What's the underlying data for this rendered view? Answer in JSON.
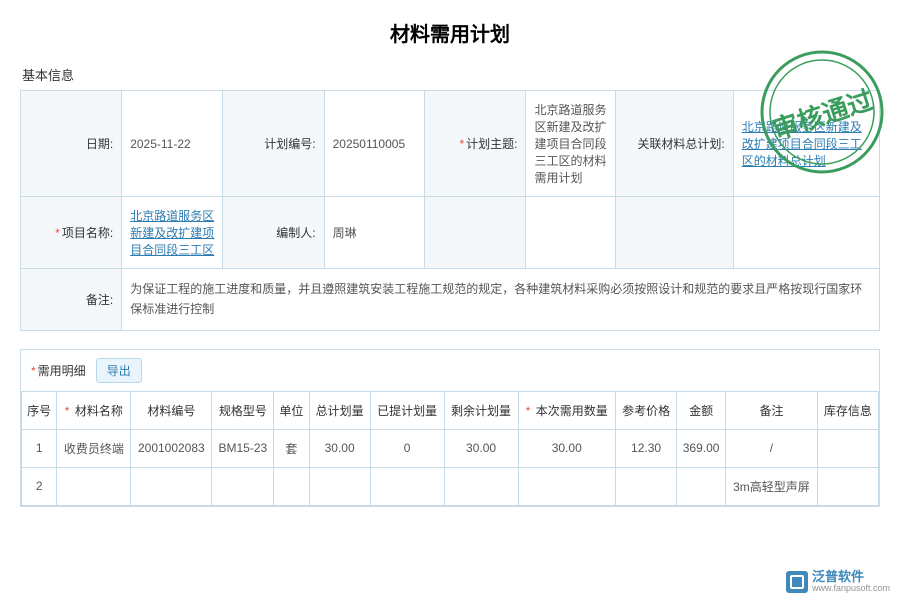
{
  "title": "材料需用计划",
  "section_basic_label": "基本信息",
  "stamp_text": "审核通过",
  "basic": {
    "date_label": "日期:",
    "date_value": "2025-11-22",
    "plan_no_label": "计划编号:",
    "plan_no_value": "20250110005",
    "plan_topic_label": "计划主题:",
    "plan_topic_value": "北京路道服务区新建及改扩建项目合同段三工区的材料需用计划",
    "related_plan_label": "关联材料总计划:",
    "related_plan_link": "北京路道服务区新建及改扩建项目合同段三工区的材料总计划",
    "project_name_label": "项目名称:",
    "project_name_link": "北京路道服务区新建及改扩建项目合同段三工区",
    "compiler_label": "编制人:",
    "compiler_value": "周琳",
    "remark_label": "备注:",
    "remark_value": "为保证工程的施工进度和质量，并且遵照建筑安装工程施工规范的规定，各种建筑材料采购必须按照设计和规范的要求且严格按现行国家环保标准进行控制"
  },
  "detail": {
    "header_label": "需用明细",
    "export_label": "导出",
    "columns": [
      "序号",
      "材料名称",
      "材料编号",
      "规格型号",
      "单位",
      "总计划量",
      "已提计划量",
      "剩余计划量",
      "本次需用数量",
      "参考价格",
      "金额",
      "备注",
      "库存信息"
    ],
    "required_cols": [
      1,
      8
    ],
    "rows": [
      [
        "1",
        "收费员终端",
        "2001002083",
        "BM15-23",
        "套",
        "30.00",
        "0",
        "30.00",
        "30.00",
        "12.30",
        "369.00",
        "/",
        ""
      ],
      [
        "2",
        "",
        "",
        "",
        "",
        "",
        "",
        "",
        "",
        "",
        "",
        "3m高轻型声屏",
        ""
      ]
    ]
  },
  "watermark": {
    "name": "泛普软件",
    "url": "www.fanpusoft.com"
  },
  "colors": {
    "border": "#c9dbe6",
    "label_bg": "#f4f8fb",
    "link": "#2b7cb3",
    "required": "#e74c3c",
    "stamp": "#3a9d5d"
  }
}
